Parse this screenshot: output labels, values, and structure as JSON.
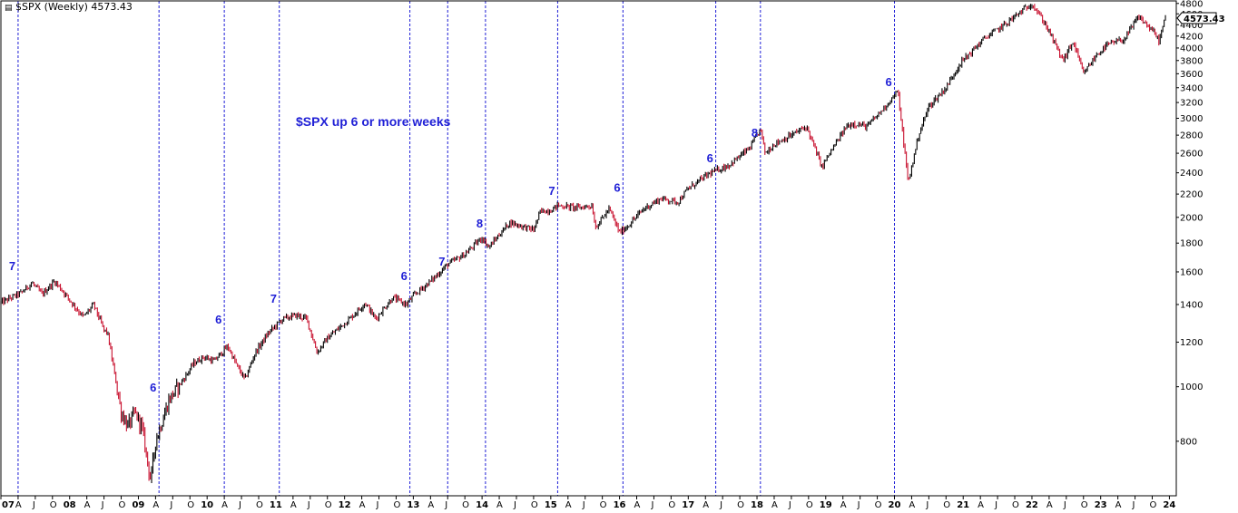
{
  "chart_data": {
    "type": "line",
    "title": "$SPX (Weekly) 4573.43",
    "note": "$SPX up 6 or more weeks",
    "last_value": "4573.43",
    "x_range": [
      2007.0,
      2024.1
    ],
    "ylim": [
      640,
      4850
    ],
    "y_scale": "log",
    "grid": false,
    "legend": "none",
    "colors": {
      "up": "#000000",
      "down": "#c8102e",
      "marker": "#1f1fd6",
      "frame": "#000000"
    },
    "ytick_values": [
      800,
      1000,
      1200,
      1400,
      1600,
      1800,
      2000,
      2200,
      2400,
      2600,
      2800,
      3000,
      3200,
      3400,
      3600,
      3800,
      4000,
      4200,
      4400,
      4600,
      4800
    ],
    "ytick_labels": [
      "800",
      "1000",
      "1200",
      "1400",
      "1600",
      "1800",
      "2000",
      "2200",
      "2400",
      "2600",
      "2800",
      "3000",
      "3200",
      "3400",
      "3600",
      "3800",
      "4000",
      "4200",
      "4400",
      "4600",
      "4800"
    ],
    "xticks": [
      {
        "x": 2007.0,
        "label": "07"
      },
      {
        "x": 2007.25,
        "label": "A"
      },
      {
        "x": 2007.5,
        "label": "J"
      },
      {
        "x": 2007.75,
        "label": "O"
      },
      {
        "x": 2008.0,
        "label": "08"
      },
      {
        "x": 2008.25,
        "label": "A"
      },
      {
        "x": 2008.5,
        "label": "J"
      },
      {
        "x": 2008.75,
        "label": "O"
      },
      {
        "x": 2009.0,
        "label": "09"
      },
      {
        "x": 2009.25,
        "label": "A"
      },
      {
        "x": 2009.5,
        "label": "J"
      },
      {
        "x": 2009.75,
        "label": "O"
      },
      {
        "x": 2010.0,
        "label": "10"
      },
      {
        "x": 2010.25,
        "label": "A"
      },
      {
        "x": 2010.5,
        "label": "J"
      },
      {
        "x": 2010.75,
        "label": "O"
      },
      {
        "x": 2011.0,
        "label": "11"
      },
      {
        "x": 2011.25,
        "label": "A"
      },
      {
        "x": 2011.5,
        "label": "J"
      },
      {
        "x": 2011.75,
        "label": "O"
      },
      {
        "x": 2012.0,
        "label": "12"
      },
      {
        "x": 2012.25,
        "label": "A"
      },
      {
        "x": 2012.5,
        "label": "J"
      },
      {
        "x": 2012.75,
        "label": "O"
      },
      {
        "x": 2013.0,
        "label": "13"
      },
      {
        "x": 2013.25,
        "label": "A"
      },
      {
        "x": 2013.5,
        "label": "J"
      },
      {
        "x": 2013.75,
        "label": "O"
      },
      {
        "x": 2014.0,
        "label": "14"
      },
      {
        "x": 2014.25,
        "label": "A"
      },
      {
        "x": 2014.5,
        "label": "J"
      },
      {
        "x": 2014.75,
        "label": "O"
      },
      {
        "x": 2015.0,
        "label": "15"
      },
      {
        "x": 2015.25,
        "label": "A"
      },
      {
        "x": 2015.5,
        "label": "J"
      },
      {
        "x": 2015.75,
        "label": "O"
      },
      {
        "x": 2016.0,
        "label": "16"
      },
      {
        "x": 2016.25,
        "label": "A"
      },
      {
        "x": 2016.5,
        "label": "J"
      },
      {
        "x": 2016.75,
        "label": "O"
      },
      {
        "x": 2017.0,
        "label": "17"
      },
      {
        "x": 2017.25,
        "label": "A"
      },
      {
        "x": 2017.5,
        "label": "J"
      },
      {
        "x": 2017.75,
        "label": "O"
      },
      {
        "x": 2018.0,
        "label": "18"
      },
      {
        "x": 2018.25,
        "label": "A"
      },
      {
        "x": 2018.5,
        "label": "J"
      },
      {
        "x": 2018.75,
        "label": "O"
      },
      {
        "x": 2019.0,
        "label": "19"
      },
      {
        "x": 2019.25,
        "label": "A"
      },
      {
        "x": 2019.5,
        "label": "J"
      },
      {
        "x": 2019.75,
        "label": "O"
      },
      {
        "x": 2020.0,
        "label": "20"
      },
      {
        "x": 2020.25,
        "label": "A"
      },
      {
        "x": 2020.5,
        "label": "J"
      },
      {
        "x": 2020.75,
        "label": "O"
      },
      {
        "x": 2021.0,
        "label": "21"
      },
      {
        "x": 2021.25,
        "label": "A"
      },
      {
        "x": 2021.5,
        "label": "J"
      },
      {
        "x": 2021.75,
        "label": "O"
      },
      {
        "x": 2022.0,
        "label": "22"
      },
      {
        "x": 2022.25,
        "label": "A"
      },
      {
        "x": 2022.5,
        "label": "J"
      },
      {
        "x": 2022.75,
        "label": "O"
      },
      {
        "x": 2023.0,
        "label": "23"
      },
      {
        "x": 2023.25,
        "label": "A"
      },
      {
        "x": 2023.5,
        "label": "J"
      },
      {
        "x": 2023.75,
        "label": "O"
      },
      {
        "x": 2024.0,
        "label": "24"
      }
    ],
    "series": [
      {
        "x": [
          2007.0,
          2007.3,
          2007.45,
          2007.6,
          2007.78,
          2007.9,
          2008.05,
          2008.2,
          2008.35,
          2008.5,
          2008.55,
          2008.75,
          2008.85,
          2008.95,
          2009.05,
          2009.18,
          2009.25,
          2009.45,
          2009.7,
          2009.8,
          2009.95,
          2010.1,
          2010.3,
          2010.45,
          2010.55,
          2010.7,
          2010.9,
          2011.1,
          2011.3,
          2011.45,
          2011.6,
          2011.75,
          2011.85,
          2012.1,
          2012.3,
          2012.45,
          2012.7,
          2012.9,
          2013.0,
          2013.3,
          2013.5,
          2013.75,
          2014.0,
          2014.1,
          2014.4,
          2014.75,
          2014.85,
          2015.0,
          2015.1,
          2015.4,
          2015.6,
          2015.65,
          2015.85,
          2016.0,
          2016.1,
          2016.35,
          2016.6,
          2016.85,
          2017.0,
          2017.3,
          2017.6,
          2017.9,
          2018.05,
          2018.12,
          2018.25,
          2018.5,
          2018.72,
          2018.95,
          2019.0,
          2019.3,
          2019.4,
          2019.6,
          2019.8,
          2020.05,
          2020.2,
          2020.35,
          2020.5,
          2020.75,
          2020.95,
          2021.3,
          2021.6,
          2021.9,
          2022.0,
          2022.2,
          2022.45,
          2022.6,
          2022.75,
          2022.95,
          2023.1,
          2023.35,
          2023.55,
          2023.75,
          2023.85,
          2023.95
        ],
        "values": [
          1410,
          1470,
          1530,
          1460,
          1540,
          1480,
          1400,
          1330,
          1400,
          1260,
          1250,
          900,
          850,
          900,
          850,
          680,
          800,
          950,
          1050,
          1100,
          1130,
          1110,
          1180,
          1080,
          1030,
          1150,
          1250,
          1320,
          1340,
          1320,
          1150,
          1220,
          1250,
          1330,
          1410,
          1320,
          1440,
          1400,
          1450,
          1560,
          1650,
          1720,
          1840,
          1770,
          1960,
          1900,
          2050,
          2060,
          2100,
          2080,
          2100,
          1920,
          2070,
          1880,
          1920,
          2070,
          2160,
          2130,
          2250,
          2390,
          2480,
          2660,
          2870,
          2600,
          2700,
          2800,
          2900,
          2450,
          2530,
          2900,
          2940,
          2900,
          3080,
          3350,
          2300,
          2800,
          3150,
          3400,
          3750,
          4150,
          4400,
          4700,
          4800,
          4400,
          3800,
          4100,
          3600,
          3900,
          4050,
          4150,
          4550,
          4300,
          4120,
          4573.43
        ]
      }
    ],
    "signals": [
      {
        "x": 2007.25,
        "label": "7",
        "value": 1530
      },
      {
        "x": 2009.3,
        "label": "6",
        "value": 930
      },
      {
        "x": 2010.25,
        "label": "6",
        "value": 1230
      },
      {
        "x": 2011.05,
        "label": "7",
        "value": 1340
      },
      {
        "x": 2012.95,
        "label": "6",
        "value": 1470
      },
      {
        "x": 2013.5,
        "label": "7",
        "value": 1560
      },
      {
        "x": 2014.05,
        "label": "8",
        "value": 1820
      },
      {
        "x": 2015.1,
        "label": "7",
        "value": 2080
      },
      {
        "x": 2016.05,
        "label": "6",
        "value": 2110
      },
      {
        "x": 2017.4,
        "label": "6",
        "value": 2380
      },
      {
        "x": 2018.05,
        "label": "8",
        "value": 2640
      },
      {
        "x": 2020.0,
        "label": "6",
        "value": 3250
      }
    ]
  }
}
